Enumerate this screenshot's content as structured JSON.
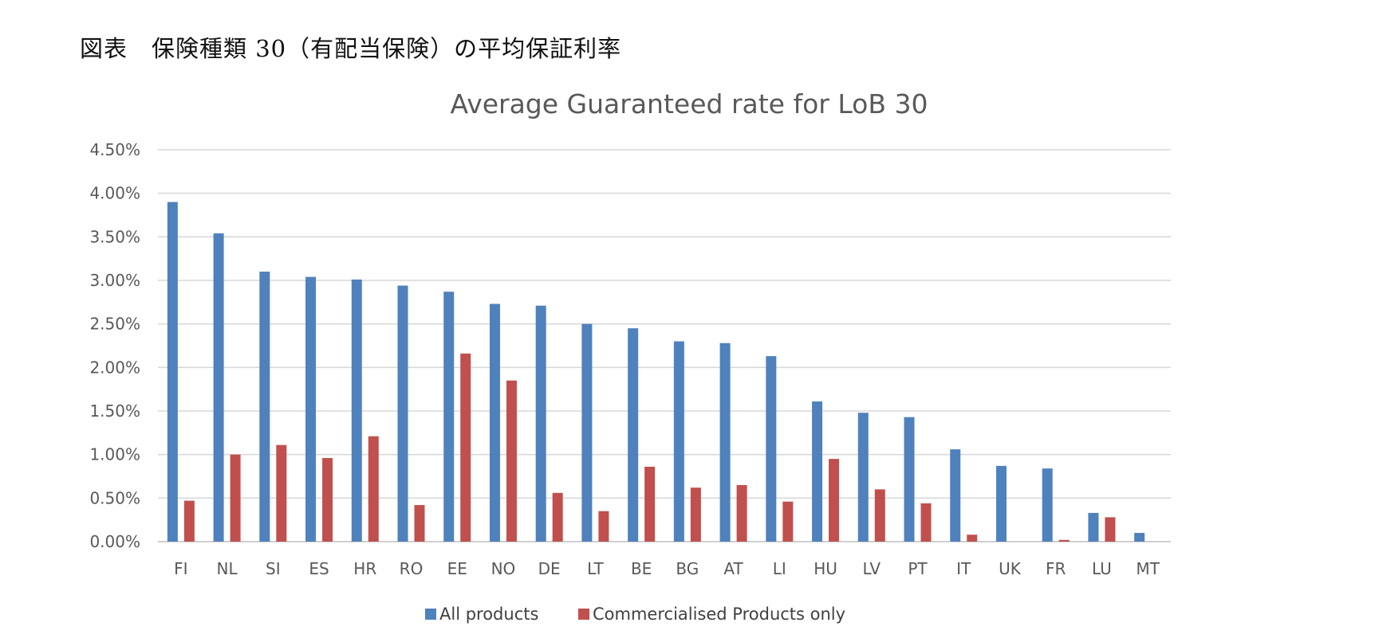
{
  "page": {
    "heading": "図表　保険種類 30（有配当保険）の平均保証利率"
  },
  "chart_data": {
    "type": "bar",
    "title": "Average Guaranteed rate for LoB 30",
    "xlabel": "",
    "ylabel": "",
    "ylim": [
      0,
      4.5
    ],
    "y_ticks": [
      "0.00%",
      "0.50%",
      "1.00%",
      "1.50%",
      "2.00%",
      "2.50%",
      "3.00%",
      "3.50%",
      "4.00%",
      "4.50%"
    ],
    "y_tick_values": [
      0,
      0.5,
      1.0,
      1.5,
      2.0,
      2.5,
      3.0,
      3.5,
      4.0,
      4.5
    ],
    "grid": true,
    "legend_position": "bottom-center",
    "categories": [
      "FI",
      "NL",
      "SI",
      "ES",
      "HR",
      "RO",
      "EE",
      "NO",
      "DE",
      "LT",
      "BE",
      "BG",
      "AT",
      "LI",
      "HU",
      "LV",
      "PT",
      "IT",
      "UK",
      "FR",
      "LU",
      "MT"
    ],
    "series": [
      {
        "name": "All products",
        "color": "#4F81BD",
        "values": [
          3.9,
          3.54,
          3.1,
          3.04,
          3.01,
          2.94,
          2.87,
          2.73,
          2.71,
          2.5,
          2.45,
          2.3,
          2.28,
          2.13,
          1.61,
          1.48,
          1.43,
          1.06,
          0.87,
          0.84,
          0.33,
          0.1
        ]
      },
      {
        "name": "Commercialised Products only",
        "color": "#C0504D",
        "values": [
          0.47,
          1.0,
          1.11,
          0.96,
          1.21,
          0.42,
          2.16,
          1.85,
          0.56,
          0.35,
          0.86,
          0.62,
          0.65,
          0.46,
          0.95,
          0.6,
          0.44,
          0.08,
          0.0,
          0.02,
          0.28,
          0.0
        ]
      }
    ]
  }
}
